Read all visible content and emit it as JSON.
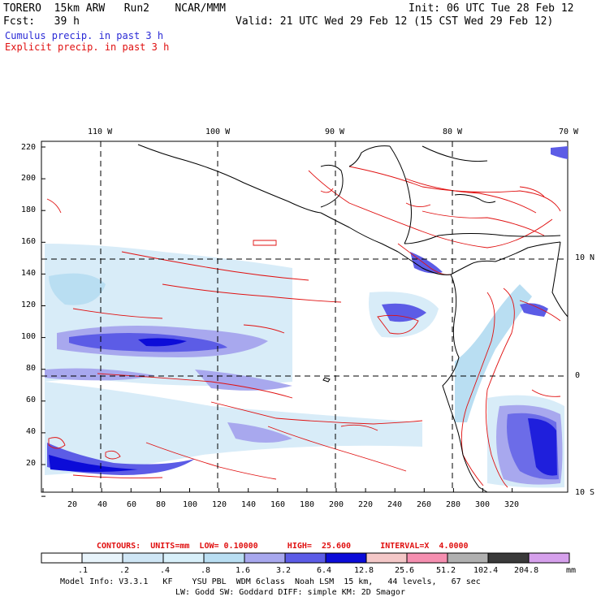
{
  "header": {
    "model": "TORERO  15km ARW   Run2    NCAR/MMM",
    "init": "Init: 06 UTC Tue 28 Feb 12",
    "fcst": "Fcst:   39 h",
    "valid": "Valid: 21 UTC Wed 29 Feb 12 (15 CST Wed 29 Feb 12)",
    "cumulus": "Cumulus precip. in past 3 h",
    "explicit": "Explicit precip. in past 3 h"
  },
  "axes": {
    "lon_labels": [
      "110 W",
      "100 W",
      "90 W",
      "80 W",
      "70 W"
    ],
    "lat_labels": [
      "10 N",
      "0",
      "10 S"
    ],
    "y_ticks": [
      "220",
      "200",
      "180",
      "160",
      "140",
      "120",
      "100",
      "80",
      "60",
      "40",
      "20"
    ],
    "x_ticks": [
      "20",
      "40",
      "60",
      "80",
      "100",
      "120",
      "140",
      "160",
      "180",
      "200",
      "220",
      "240",
      "260",
      "280",
      "300",
      "320"
    ]
  },
  "contours": {
    "label": "CONTOURS:  UNITS=mm  LOW= 0.10000      HIGH=  25.600      INTERVAL=X  4.0000"
  },
  "colorbar": {
    "values": [
      ".1",
      ".2",
      ".4",
      ".8",
      "1.6",
      "3.2",
      "6.4",
      "12.8",
      "25.6",
      "51.2",
      "102.4",
      "204.8"
    ],
    "unit": "mm",
    "colors": [
      "#ffffff",
      "#e8f4fb",
      "#cfe6f5",
      "#d8f0fa",
      "#b9def2",
      "#a8a8ee",
      "#5c5ce6",
      "#0c0cd8",
      "#f4c8c8",
      "#f58fb0",
      "#b0b0b0",
      "#3a3a3a",
      "#d6a0ec"
    ]
  },
  "info": {
    "line1": "Model Info: V3.3.1   KF    YSU PBL  WDM 6class  Noah LSM  15 km,   44 levels,   67 sec",
    "line2": "LW: Godd SW: Goddard DIFF: simple KM: 2D Smagor"
  }
}
